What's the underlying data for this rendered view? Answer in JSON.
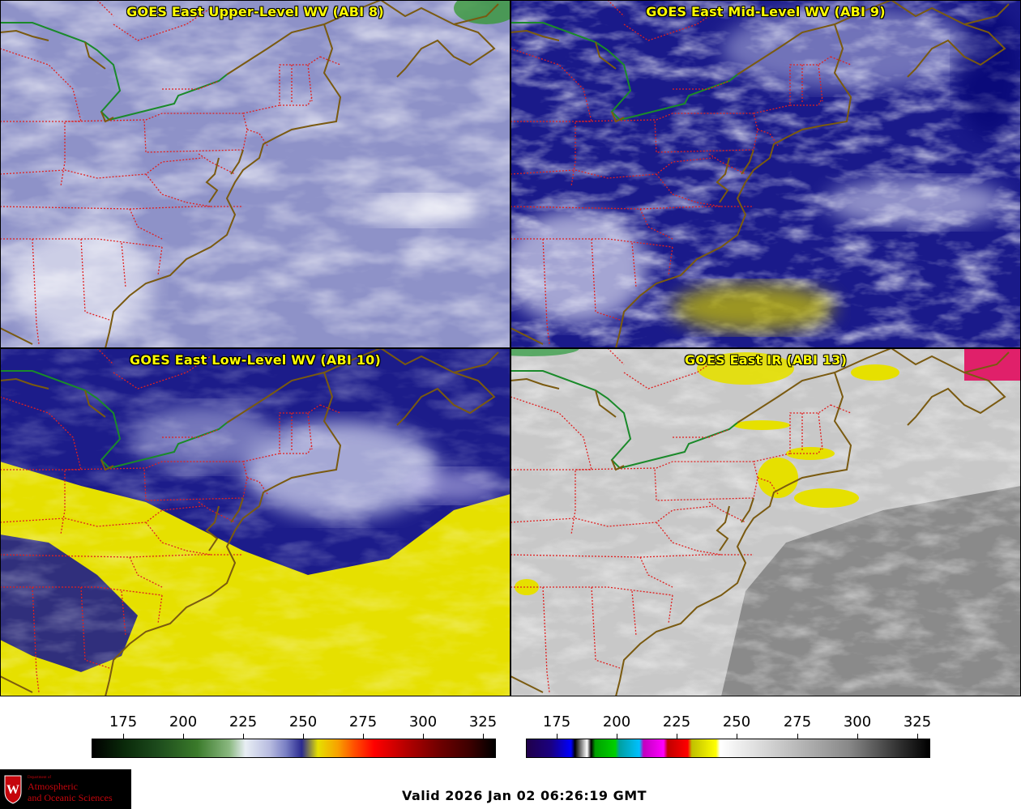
{
  "panels": [
    {
      "title": "GOES East Upper-Level WV (ABI 8)"
    },
    {
      "title": "GOES East Mid-Level WV (ABI 9)"
    },
    {
      "title": "GOES East Low-Level WV (ABI 10)"
    },
    {
      "title": "GOES East IR (ABI 13)"
    }
  ],
  "colorbar_wv": {
    "ticks": [
      "175",
      "200",
      "225",
      "250",
      "275",
      "300",
      "325"
    ]
  },
  "colorbar_ir": {
    "ticks": [
      "175",
      "200",
      "225",
      "250",
      "275",
      "300",
      "325"
    ]
  },
  "logo": {
    "dept": "Department of",
    "line1": "Atmospheric",
    "line2": "and Oceanic Sciences"
  },
  "valid": "Valid 2026 Jan 02 06:26:19 GMT",
  "colors": {
    "title_text": "#ffff00",
    "state_borders": "#e02020",
    "coastline": "#7a5a10",
    "canada_border": "#1a8a2a"
  }
}
